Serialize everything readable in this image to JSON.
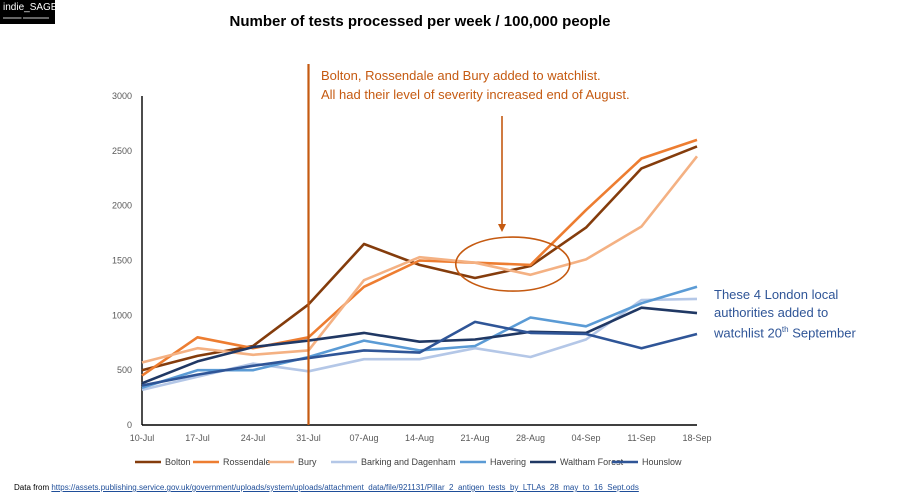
{
  "logo": {
    "name": "indie_SAGE"
  },
  "chart_data": {
    "type": "line",
    "title": "Number of tests processed per week / 100,000 people",
    "xlabel": "",
    "ylabel": "",
    "categories": [
      "10-Jul",
      "17-Jul",
      "24-Jul",
      "31-Jul",
      "07-Aug",
      "14-Aug",
      "21-Aug",
      "28-Aug",
      "04-Sep",
      "11-Sep",
      "18-Sep"
    ],
    "ylim": [
      0,
      3000
    ],
    "yticks": [
      0,
      500,
      1000,
      1500,
      2000,
      2500,
      3000
    ],
    "grid": false,
    "legend": "bottom",
    "series": [
      {
        "name": "Bolton",
        "color": "#843c0c",
        "values": [
          500,
          630,
          720,
          1100,
          1650,
          1460,
          1340,
          1450,
          1800,
          2340,
          2540
        ]
      },
      {
        "name": "Rossendale",
        "color": "#ed7d31",
        "values": [
          450,
          800,
          700,
          800,
          1260,
          1500,
          1480,
          1460,
          1960,
          2430,
          2600
        ]
      },
      {
        "name": "Bury",
        "color": "#f4b183",
        "values": [
          570,
          700,
          640,
          680,
          1320,
          1530,
          1480,
          1370,
          1510,
          1810,
          2450
        ]
      },
      {
        "name": "Barking and Dagenham",
        "color": "#b4c7e7",
        "values": [
          320,
          440,
          560,
          490,
          600,
          600,
          700,
          620,
          780,
          1140,
          1150
        ]
      },
      {
        "name": "Havering",
        "color": "#5b9bd5",
        "values": [
          340,
          500,
          500,
          620,
          770,
          680,
          720,
          980,
          900,
          1110,
          1260
        ]
      },
      {
        "name": "Waltham Forest",
        "color": "#203864",
        "values": [
          380,
          580,
          710,
          770,
          840,
          760,
          780,
          850,
          840,
          1070,
          1020
        ]
      },
      {
        "name": "Hounslow",
        "color": "#2f5597",
        "values": [
          360,
          460,
          540,
          610,
          680,
          660,
          940,
          840,
          830,
          700,
          830
        ]
      }
    ],
    "annotations": {
      "watchlist_ne": [
        "Bolton, Rossendale and Bury added to watchlist.",
        "All had their level of severity increased end of August."
      ],
      "watchlist_london": [
        "These 4 London local",
        "authorities added to"
      ],
      "watchlist_london_date_prefix": "watchlist 20",
      "watchlist_london_date_sup": "th",
      "watchlist_london_date_suffix": " September"
    },
    "marker_line": {
      "at_category": "31-Jul",
      "color": "#c55a11"
    },
    "highlight_ellipse": {
      "around_categories": [
        "21-Aug",
        "28-Aug"
      ],
      "center_value": 1440,
      "color": "#c55a11"
    }
  },
  "source": {
    "prefix": "Data from ",
    "url": "https://assets.publishing.service.gov.uk/government/uploads/system/uploads/attachment_data/file/921131/Pillar_2_antigen_tests_by_LTLAs_28_may_to_16_Sept.ods"
  }
}
